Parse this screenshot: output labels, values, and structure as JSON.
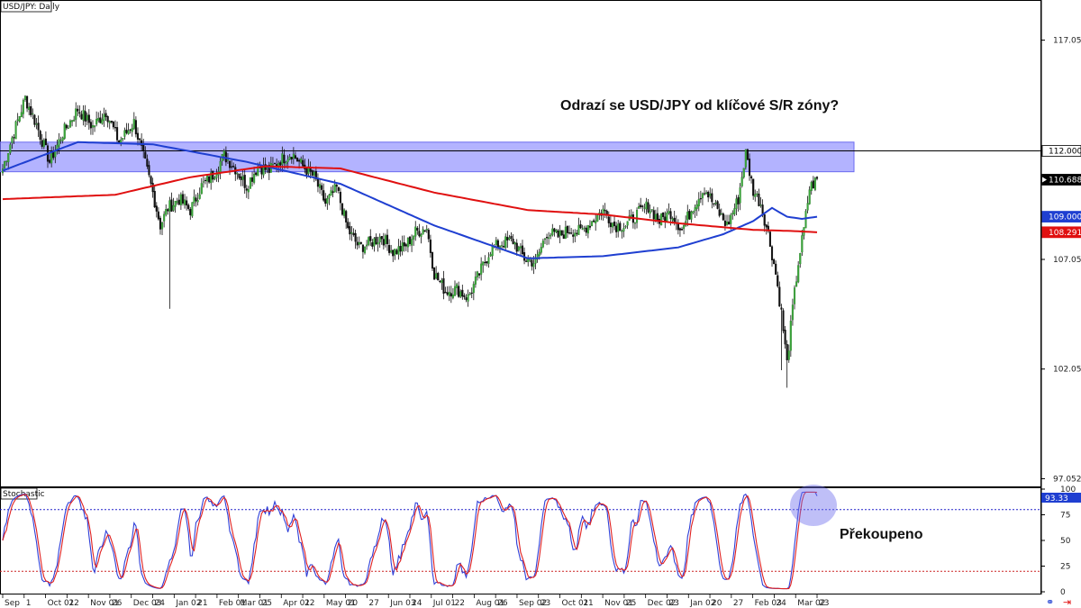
{
  "chart_title": "USD/JPY: Daily",
  "annotation_main": "Odrazí se USD/JPY od klíčové S/R zóny?",
  "annotation_stoch": "Překoupeno",
  "chart_data": [
    {
      "type": "candlestick",
      "title": "USD/JPY: Daily",
      "y_ticks": [
        117.052,
        112.0,
        107.052,
        102.052,
        97.052
      ],
      "ylim": [
        96.7,
        118.8
      ],
      "resistance_zone": [
        111.05,
        112.4
      ],
      "horizontal_line": 112.0,
      "price_tags": [
        {
          "label": "112.000",
          "value": 112.0,
          "bg": "#ffffff",
          "fg": "#000000"
        },
        {
          "label": "110.688",
          "value": 110.688,
          "bg": "#000000",
          "fg": "#ffffff"
        },
        {
          "label": "109.000",
          "value": 109.0,
          "bg": "#1f3fd1",
          "fg": "#ffffff"
        },
        {
          "label": "108.291",
          "value": 108.291,
          "bg": "#e01010",
          "fg": "#ffffff"
        }
      ],
      "x_labels": [
        "Sep",
        "1",
        "Oct 01",
        "22",
        "Nov 01",
        "26",
        "Dec 03",
        "24",
        "Jan 02",
        "21",
        "Feb 01",
        "Mar 01",
        "25",
        "Apr 01",
        "22",
        "May 01",
        "20",
        "27",
        "Jun 03",
        "24",
        "Jul 01",
        "22",
        "Aug 01",
        "26",
        "Sep 02",
        "23",
        "Oct 01",
        "21",
        "Nov 01",
        "25",
        "Dec 02",
        "23",
        "Jan 02",
        "20",
        "27",
        "Feb 03",
        "24",
        "Mar 02",
        "23"
      ],
      "close_anchors": [
        [
          0,
          111.2
        ],
        [
          5,
          112.6
        ],
        [
          12,
          114.4
        ],
        [
          18,
          113.2
        ],
        [
          25,
          111.5
        ],
        [
          32,
          112.8
        ],
        [
          40,
          113.9
        ],
        [
          48,
          113.1
        ],
        [
          55,
          113.8
        ],
        [
          62,
          112.4
        ],
        [
          70,
          113.3
        ],
        [
          76,
          111.4
        ],
        [
          80,
          110.1
        ],
        [
          84,
          108.6
        ],
        [
          88,
          109.4
        ],
        [
          94,
          109.8
        ],
        [
          100,
          109.3
        ],
        [
          106,
          110.4
        ],
        [
          112,
          110.9
        ],
        [
          118,
          111.8
        ],
        [
          124,
          111.2
        ],
        [
          130,
          110.4
        ],
        [
          136,
          111.3
        ],
        [
          142,
          111.1
        ],
        [
          148,
          111.6
        ],
        [
          154,
          111.9
        ],
        [
          160,
          111.3
        ],
        [
          166,
          110.8
        ],
        [
          172,
          109.6
        ],
        [
          178,
          110.3
        ],
        [
          184,
          108.4
        ],
        [
          190,
          107.6
        ],
        [
          196,
          107.8
        ],
        [
          202,
          108.1
        ],
        [
          208,
          107.4
        ],
        [
          214,
          107.6
        ],
        [
          220,
          108.3
        ],
        [
          226,
          108.5
        ],
        [
          230,
          106.4
        ],
        [
          236,
          105.6
        ],
        [
          242,
          105.7
        ],
        [
          248,
          105.3
        ],
        [
          254,
          106.4
        ],
        [
          260,
          107.5
        ],
        [
          266,
          107.8
        ],
        [
          272,
          107.9
        ],
        [
          278,
          107.1
        ],
        [
          284,
          106.9
        ],
        [
          290,
          108.3
        ],
        [
          296,
          108.1
        ],
        [
          302,
          108.4
        ],
        [
          308,
          108.3
        ],
        [
          314,
          108.8
        ],
        [
          320,
          109.3
        ],
        [
          326,
          108.6
        ],
        [
          332,
          108.6
        ],
        [
          338,
          109.1
        ],
        [
          344,
          109.5
        ],
        [
          350,
          108.8
        ],
        [
          356,
          109.2
        ],
        [
          362,
          108.4
        ],
        [
          368,
          109.5
        ],
        [
          374,
          110.3
        ],
        [
          380,
          109.4
        ],
        [
          386,
          108.6
        ],
        [
          392,
          109.8
        ],
        [
          396,
          111.9
        ],
        [
          400,
          110.2
        ],
        [
          404,
          109.6
        ],
        [
          408,
          108.2
        ],
        [
          412,
          106.4
        ],
        [
          415,
          104.6
        ],
        [
          418,
          102.3
        ],
        [
          421,
          104.8
        ],
        [
          424,
          106.9
        ],
        [
          427,
          108.4
        ],
        [
          430,
          110.3
        ],
        [
          434,
          110.69
        ]
      ],
      "ma_blue_anchors": [
        [
          0,
          111.1
        ],
        [
          40,
          112.4
        ],
        [
          80,
          112.3
        ],
        [
          130,
          111.5
        ],
        [
          180,
          110.5
        ],
        [
          230,
          108.6
        ],
        [
          280,
          107.1
        ],
        [
          320,
          107.2
        ],
        [
          360,
          107.6
        ],
        [
          384,
          108.2
        ],
        [
          400,
          108.8
        ],
        [
          410,
          109.4
        ],
        [
          418,
          109.0
        ],
        [
          426,
          108.9
        ],
        [
          434,
          109.0
        ]
      ],
      "ma_red_anchors": [
        [
          0,
          109.8
        ],
        [
          60,
          110.0
        ],
        [
          100,
          110.8
        ],
        [
          140,
          111.3
        ],
        [
          180,
          111.2
        ],
        [
          230,
          110.1
        ],
        [
          280,
          109.3
        ],
        [
          320,
          109.1
        ],
        [
          360,
          108.7
        ],
        [
          400,
          108.4
        ],
        [
          420,
          108.35
        ],
        [
          434,
          108.29
        ]
      ],
      "stochastic": {
        "title": "Stochastic",
        "y_ticks": [
          100,
          75,
          50,
          25,
          0
        ],
        "levels": [
          80,
          20
        ],
        "last_label": "93.33",
        "last_value": 93.33
      }
    }
  ]
}
